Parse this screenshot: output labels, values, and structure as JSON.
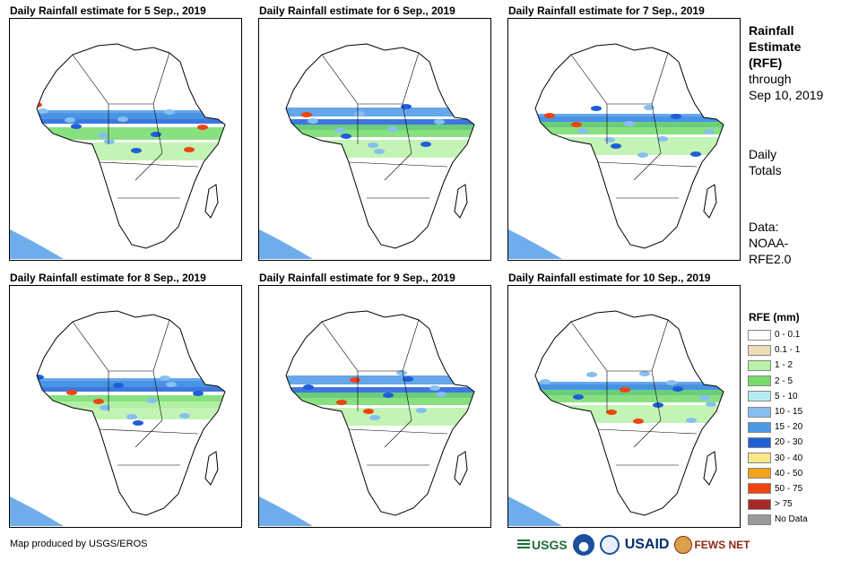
{
  "panels": [
    {
      "title": "Daily Rainfall estimate for 5 Sep., 2019"
    },
    {
      "title": "Daily Rainfall estimate for 6 Sep., 2019"
    },
    {
      "title": "Daily Rainfall estimate for 7 Sep., 2019"
    },
    {
      "title": "Daily Rainfall estimate for 8 Sep., 2019"
    },
    {
      "title": "Daily Rainfall estimate for 9 Sep., 2019"
    },
    {
      "title": "Daily Rainfall estimate for 10 Sep., 2019"
    }
  ],
  "sidebar": {
    "heading_lines": [
      "Rainfall",
      "Estimate",
      "(RFE)"
    ],
    "through_lines": [
      "through",
      "Sep 10, 2019"
    ],
    "totals_lines": [
      "Daily",
      "Totals"
    ],
    "data_lines": [
      "Data:",
      "NOAA-",
      "RFE2.0"
    ]
  },
  "legend": {
    "title": "RFE (mm)",
    "items": [
      {
        "label": "0 - 0.1",
        "color": "#ffffff"
      },
      {
        "label": "0.1 - 1",
        "color": "#efdcb8"
      },
      {
        "label": "1 - 2",
        "color": "#b8f2a8"
      },
      {
        "label": "2 - 5",
        "color": "#73dc6a"
      },
      {
        "label": "5 - 10",
        "color": "#b4ecf2"
      },
      {
        "label": "10 - 15",
        "color": "#86bff0"
      },
      {
        "label": "15 - 20",
        "color": "#4a98e6"
      },
      {
        "label": "20 - 30",
        "color": "#1e5fd8"
      },
      {
        "label": "30 - 40",
        "color": "#f8e68a"
      },
      {
        "label": "40 - 50",
        "color": "#f2a21c"
      },
      {
        "label": "50 - 75",
        "color": "#f04410"
      },
      {
        "label": "> 75",
        "color": "#a82828"
      },
      {
        "label": "No Data",
        "color": "#999999"
      }
    ]
  },
  "footer": {
    "credit": "Map produced by USGS/EROS",
    "logos": {
      "usgs": "USGS",
      "usaid": "USAID",
      "fews": "FEWS NET"
    }
  }
}
